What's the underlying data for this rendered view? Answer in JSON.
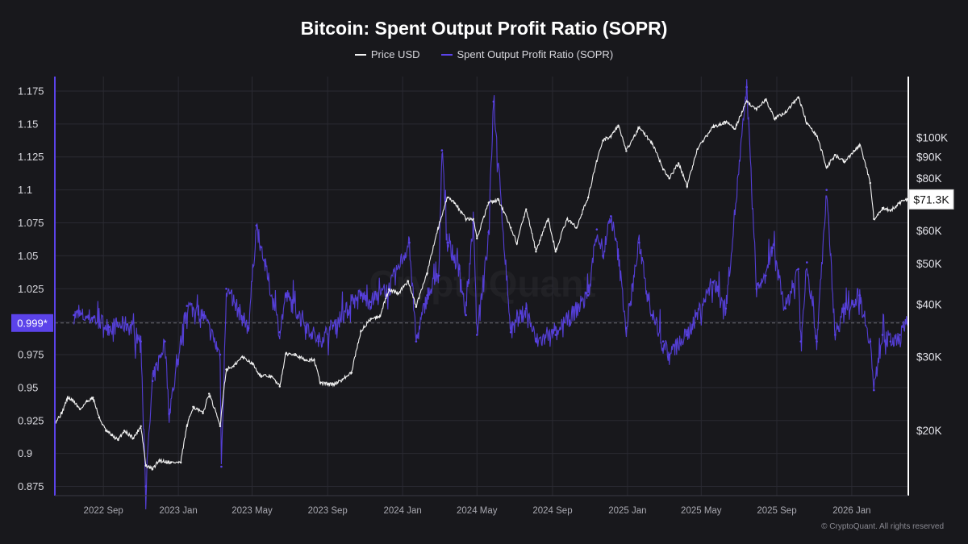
{
  "chart_data": {
    "type": "line",
    "title": "Bitcoin: Spent Output Profit Ratio (SOPR)",
    "legend_position": "top-center",
    "grid": true,
    "colors": {
      "background": "#18181c",
      "price": "#f2f2f2",
      "sopr": "#5b43ea",
      "marker_bg": "#5b43ea",
      "grid": "#2a2a32"
    },
    "x_axis": {
      "range": [
        "2022-06-14",
        "2026-04-03"
      ],
      "tick_labels": [
        {
          "date": "2022-09-01",
          "label": "2022 Sep"
        },
        {
          "date": "2023-01-01",
          "label": "2023 Jan"
        },
        {
          "date": "2023-05-01",
          "label": "2023 May"
        },
        {
          "date": "2023-09-01",
          "label": "2023 Sep"
        },
        {
          "date": "2024-01-01",
          "label": "2024 Jan"
        },
        {
          "date": "2024-05-01",
          "label": "2024 May"
        },
        {
          "date": "2024-09-01",
          "label": "2024 Sep"
        },
        {
          "date": "2025-01-01",
          "label": "2025 Jan"
        },
        {
          "date": "2025-05-01",
          "label": "2025 May"
        },
        {
          "date": "2025-09-01",
          "label": "2025 Sep"
        },
        {
          "date": "2026-01-01",
          "label": "2026 Jan"
        }
      ]
    },
    "left_axis": {
      "series": "Spent Output Profit Ratio (SOPR)",
      "range": [
        0.868,
        1.186
      ],
      "tick_labels": [
        "0.875",
        "0.9",
        "0.925",
        "0.95",
        "0.975",
        "1",
        "1.025",
        "1.05",
        "1.075",
        "1.1",
        "1.125",
        "1.15",
        "1.175"
      ],
      "current_marker": "0.999*"
    },
    "right_axis": {
      "series": "Price USD",
      "scale": "log",
      "range": [
        14000,
        140000
      ],
      "tick_labels": [
        {
          "value": 20000,
          "label": "$20K"
        },
        {
          "value": 30000,
          "label": "$30K"
        },
        {
          "value": 40000,
          "label": "$40K"
        },
        {
          "value": 50000,
          "label": "$50K"
        },
        {
          "value": 60000,
          "label": "$60K"
        },
        {
          "value": 80000,
          "label": "$80K"
        },
        {
          "value": 90000,
          "label": "$90K"
        },
        {
          "value": 100000,
          "label": "$100K"
        }
      ],
      "current_marker": "$71.3K"
    },
    "series": [
      {
        "name": "Price USD",
        "axis": "right",
        "points": [
          [
            "2022-06-15",
            21000
          ],
          [
            "2022-06-25",
            22000
          ],
          [
            "2022-07-05",
            24000
          ],
          [
            "2022-07-15",
            23500
          ],
          [
            "2022-07-25",
            22500
          ],
          [
            "2022-08-05",
            23500
          ],
          [
            "2022-08-15",
            24000
          ],
          [
            "2022-08-25",
            21500
          ],
          [
            "2022-09-05",
            20000
          ],
          [
            "2022-09-15",
            19500
          ],
          [
            "2022-09-25",
            19000
          ],
          [
            "2022-10-05",
            20000
          ],
          [
            "2022-10-20",
            19200
          ],
          [
            "2022-11-01",
            20500
          ],
          [
            "2022-11-09",
            16500
          ],
          [
            "2022-11-20",
            16200
          ],
          [
            "2022-12-01",
            17000
          ],
          [
            "2022-12-20",
            16800
          ],
          [
            "2023-01-05",
            16800
          ],
          [
            "2023-01-15",
            20500
          ],
          [
            "2023-01-25",
            22800
          ],
          [
            "2023-02-10",
            22000
          ],
          [
            "2023-02-20",
            24500
          ],
          [
            "2023-03-10",
            20500
          ],
          [
            "2023-03-20",
            28000
          ],
          [
            "2023-04-01",
            28500
          ],
          [
            "2023-04-15",
            30000
          ],
          [
            "2023-05-01",
            29000
          ],
          [
            "2023-05-15",
            27000
          ],
          [
            "2023-06-01",
            27000
          ],
          [
            "2023-06-15",
            25500
          ],
          [
            "2023-06-25",
            30500
          ],
          [
            "2023-07-10",
            30500
          ],
          [
            "2023-07-25",
            29500
          ],
          [
            "2023-08-10",
            29500
          ],
          [
            "2023-08-20",
            26000
          ],
          [
            "2023-09-10",
            25800
          ],
          [
            "2023-09-25",
            26500
          ],
          [
            "2023-10-10",
            27500
          ],
          [
            "2023-10-25",
            34500
          ],
          [
            "2023-11-10",
            37000
          ],
          [
            "2023-11-25",
            37500
          ],
          [
            "2023-12-10",
            43500
          ],
          [
            "2023-12-25",
            42500
          ],
          [
            "2024-01-10",
            45500
          ],
          [
            "2024-01-23",
            39500
          ],
          [
            "2024-02-10",
            47500
          ],
          [
            "2024-02-28",
            61000
          ],
          [
            "2024-03-14",
            72000
          ],
          [
            "2024-03-25",
            70000
          ],
          [
            "2024-04-13",
            64000
          ],
          [
            "2024-04-25",
            64000
          ],
          [
            "2024-05-01",
            57500
          ],
          [
            "2024-05-20",
            70000
          ],
          [
            "2024-06-05",
            71000
          ],
          [
            "2024-06-25",
            61000
          ],
          [
            "2024-07-05",
            56000
          ],
          [
            "2024-07-20",
            67500
          ],
          [
            "2024-08-05",
            53500
          ],
          [
            "2024-08-25",
            64000
          ],
          [
            "2024-09-06",
            53500
          ],
          [
            "2024-09-25",
            64000
          ],
          [
            "2024-10-10",
            61000
          ],
          [
            "2024-10-29",
            72000
          ],
          [
            "2024-11-12",
            88000
          ],
          [
            "2024-11-22",
            98500
          ],
          [
            "2024-12-05",
            101000
          ],
          [
            "2024-12-17",
            107000
          ],
          [
            "2024-12-30",
            93000
          ],
          [
            "2025-01-20",
            106000
          ],
          [
            "2025-02-10",
            97000
          ],
          [
            "2025-02-28",
            84000
          ],
          [
            "2025-03-10",
            80000
          ],
          [
            "2025-03-25",
            87000
          ],
          [
            "2025-04-08",
            76500
          ],
          [
            "2025-04-25",
            94000
          ],
          [
            "2025-05-20",
            106000
          ],
          [
            "2025-06-10",
            109000
          ],
          [
            "2025-06-25",
            105000
          ],
          [
            "2025-07-14",
            122000
          ],
          [
            "2025-07-30",
            117000
          ],
          [
            "2025-08-14",
            123500
          ],
          [
            "2025-08-28",
            111000
          ],
          [
            "2025-09-15",
            115000
          ],
          [
            "2025-10-06",
            125000
          ],
          [
            "2025-10-20",
            108000
          ],
          [
            "2025-11-05",
            101000
          ],
          [
            "2025-11-21",
            85000
          ],
          [
            "2025-12-05",
            91000
          ],
          [
            "2025-12-20",
            87500
          ],
          [
            "2026-01-05",
            93000
          ],
          [
            "2026-01-14",
            96000
          ],
          [
            "2026-01-31",
            78000
          ],
          [
            "2026-02-06",
            64000
          ],
          [
            "2026-02-20",
            68000
          ],
          [
            "2026-03-05",
            67000
          ],
          [
            "2026-03-20",
            70000
          ],
          [
            "2026-04-02",
            71300
          ]
        ]
      },
      {
        "name": "Spent Output Profit Ratio (SOPR)",
        "axis": "left",
        "baseline": 1.0,
        "points": [
          [
            "2022-07-15",
            1.005
          ],
          [
            "2022-08-15",
            1.003
          ],
          [
            "2022-09-10",
            0.996
          ],
          [
            "2022-10-10",
            0.998
          ],
          [
            "2022-11-01",
            0.985
          ],
          [
            "2022-11-09",
            0.875
          ],
          [
            "2022-11-20",
            0.955
          ],
          [
            "2022-12-10",
            0.985
          ],
          [
            "2022-12-17",
            0.93
          ],
          [
            "2023-01-15",
            1.012
          ],
          [
            "2023-02-10",
            1.005
          ],
          [
            "2023-03-10",
            0.975
          ],
          [
            "2023-03-12",
            0.89
          ],
          [
            "2023-03-20",
            1.025
          ],
          [
            "2023-04-25",
            0.995
          ],
          [
            "2023-05-08",
            1.073
          ],
          [
            "2023-06-15",
            0.992
          ],
          [
            "2023-06-25",
            1.02
          ],
          [
            "2023-08-17",
            0.985
          ],
          [
            "2023-09-10",
            0.997
          ],
          [
            "2023-10-25",
            1.02
          ],
          [
            "2023-11-10",
            1.015
          ],
          [
            "2023-12-10",
            1.025
          ],
          [
            "2024-01-12",
            1.06
          ],
          [
            "2024-01-23",
            0.985
          ],
          [
            "2024-02-10",
            1.02
          ],
          [
            "2024-02-29",
            1.035
          ],
          [
            "2024-03-05",
            1.13
          ],
          [
            "2024-03-14",
            1.06
          ],
          [
            "2024-04-02",
            1.04
          ],
          [
            "2024-04-13",
            1.005
          ],
          [
            "2024-04-25",
            1.075
          ],
          [
            "2024-05-01",
            0.99
          ],
          [
            "2024-05-20",
            1.068
          ],
          [
            "2024-05-28",
            1.167
          ],
          [
            "2024-06-25",
            0.992
          ],
          [
            "2024-07-20",
            1.01
          ],
          [
            "2024-08-05",
            0.985
          ],
          [
            "2024-09-06",
            0.99
          ],
          [
            "2024-10-29",
            1.02
          ],
          [
            "2024-11-12",
            1.07
          ],
          [
            "2024-11-22",
            1.05
          ],
          [
            "2024-12-05",
            1.08
          ],
          [
            "2024-12-17",
            1.05
          ],
          [
            "2024-12-30",
            0.995
          ],
          [
            "2025-01-20",
            1.06
          ],
          [
            "2025-02-10",
            1.005
          ],
          [
            "2025-02-28",
            0.985
          ],
          [
            "2025-03-10",
            0.975
          ],
          [
            "2025-04-08",
            0.99
          ],
          [
            "2025-05-20",
            1.03
          ],
          [
            "2025-06-10",
            1.01
          ],
          [
            "2025-07-14",
            1.178
          ],
          [
            "2025-07-30",
            1.025
          ],
          [
            "2025-08-14",
            1.035
          ],
          [
            "2025-08-25",
            1.056
          ],
          [
            "2025-09-15",
            1.01
          ],
          [
            "2025-10-06",
            1.04
          ],
          [
            "2025-10-10",
            0.985
          ],
          [
            "2025-10-20",
            1.045
          ],
          [
            "2025-11-05",
            0.985
          ],
          [
            "2025-11-21",
            1.1
          ],
          [
            "2025-12-05",
            0.99
          ],
          [
            "2025-12-20",
            1.01
          ],
          [
            "2026-01-14",
            1.02
          ],
          [
            "2026-01-31",
            0.985
          ],
          [
            "2026-02-06",
            0.948
          ],
          [
            "2026-02-20",
            0.99
          ],
          [
            "2026-03-05",
            0.985
          ],
          [
            "2026-03-20",
            0.99
          ],
          [
            "2026-04-02",
            0.999
          ]
        ]
      }
    ]
  },
  "legend": [
    {
      "label": "Price USD",
      "color": "#f2f2f2"
    },
    {
      "label": "Spent Output Profit Ratio (SOPR)",
      "color": "#5b43ea"
    }
  ],
  "watermark": "CryptoQuant",
  "copyright": "© CryptoQuant. All rights reserved"
}
